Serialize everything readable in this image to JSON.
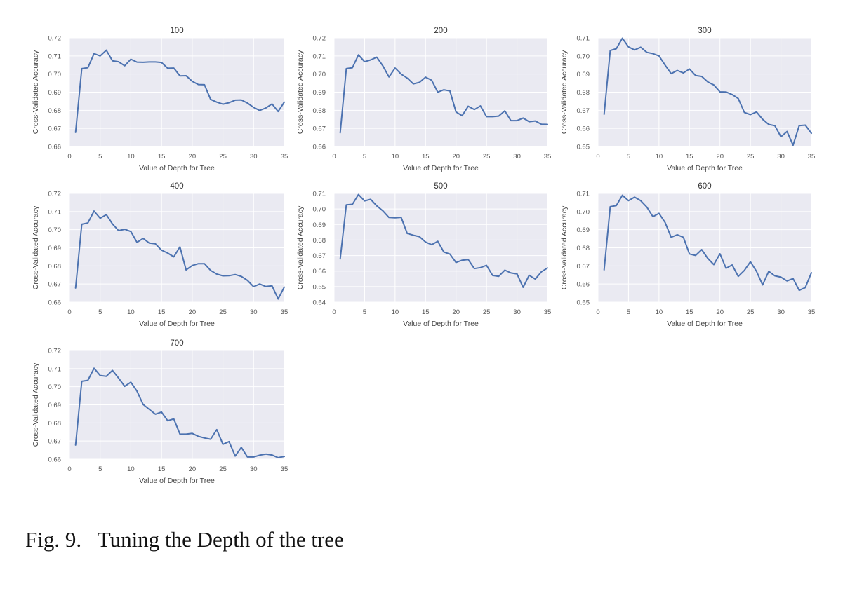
{
  "caption": "Fig. 9.   Tuning the Depth of the tree",
  "style": {
    "plot_bg": "#eaeaf2",
    "grid": "#ffffff",
    "line": "#4c72b0"
  },
  "chart_data": [
    {
      "type": "line",
      "title": "100",
      "xlabel": "Value of Depth for Tree",
      "ylabel": "Cross-Validated Accuracy",
      "xlim": [
        0,
        35
      ],
      "ylim": [
        0.66,
        0.72
      ],
      "xticks": [
        "0",
        "5",
        "10",
        "15",
        "20",
        "25",
        "30",
        "35"
      ],
      "yticks": [
        "0.66",
        "0.67",
        "0.68",
        "0.69",
        "0.70",
        "0.71",
        "0.72"
      ],
      "grid": true,
      "x": [
        1,
        2,
        3,
        4,
        5,
        6,
        7,
        8,
        9,
        10,
        11,
        12,
        13,
        14,
        15,
        16,
        17,
        18,
        19,
        20,
        21,
        22,
        23,
        24,
        25,
        26,
        27,
        28,
        29,
        30,
        31,
        32,
        33,
        34,
        35
      ],
      "y": [
        0.6678,
        0.703,
        0.7035,
        0.7113,
        0.71,
        0.7132,
        0.7073,
        0.7068,
        0.7046,
        0.7082,
        0.7066,
        0.7065,
        0.7067,
        0.7067,
        0.7064,
        0.7032,
        0.7033,
        0.699,
        0.6991,
        0.696,
        0.6942,
        0.6941,
        0.686,
        0.6845,
        0.6834,
        0.6842,
        0.6856,
        0.6857,
        0.684,
        0.6816,
        0.6799,
        0.6813,
        0.6835,
        0.6793,
        0.6845
      ]
    },
    {
      "type": "line",
      "title": "200",
      "xlabel": "Value of Depth for Tree",
      "ylabel": "Cross-Validated Accuracy",
      "xlim": [
        0,
        35
      ],
      "ylim": [
        0.66,
        0.72
      ],
      "xticks": [
        "0",
        "5",
        "10",
        "15",
        "20",
        "25",
        "30",
        "35"
      ],
      "yticks": [
        "0.66",
        "0.67",
        "0.68",
        "0.69",
        "0.70",
        "0.71",
        "0.72"
      ],
      "grid": true,
      "x": [
        1,
        2,
        3,
        4,
        5,
        6,
        7,
        8,
        9,
        10,
        11,
        12,
        13,
        14,
        15,
        16,
        17,
        18,
        19,
        20,
        21,
        22,
        23,
        24,
        25,
        26,
        27,
        28,
        29,
        30,
        31,
        32,
        33,
        34,
        35
      ],
      "y": [
        0.6676,
        0.703,
        0.7035,
        0.7106,
        0.7068,
        0.7078,
        0.7093,
        0.7045,
        0.6984,
        0.7033,
        0.7,
        0.6978,
        0.6946,
        0.6954,
        0.6983,
        0.6966,
        0.69,
        0.6913,
        0.6907,
        0.6791,
        0.677,
        0.6822,
        0.6804,
        0.6824,
        0.6765,
        0.6765,
        0.6768,
        0.6797,
        0.6743,
        0.6743,
        0.6757,
        0.6737,
        0.6741,
        0.6723,
        0.6722
      ]
    },
    {
      "type": "line",
      "title": "300",
      "xlabel": "Value of Depth for Tree",
      "ylabel": "Cross-Validated Accuracy",
      "xlim": [
        0,
        35
      ],
      "ylim": [
        0.65,
        0.71
      ],
      "xticks": [
        "0",
        "5",
        "10",
        "15",
        "20",
        "25",
        "30",
        "35"
      ],
      "yticks": [
        "0.65",
        "0.66",
        "0.67",
        "0.68",
        "0.69",
        "0.70",
        "0.71"
      ],
      "grid": true,
      "x": [
        1,
        2,
        3,
        4,
        5,
        6,
        7,
        8,
        9,
        10,
        11,
        12,
        13,
        14,
        15,
        16,
        17,
        18,
        19,
        20,
        21,
        22,
        23,
        24,
        25,
        26,
        27,
        28,
        29,
        30,
        31,
        32,
        33,
        34,
        35
      ],
      "y": [
        0.6678,
        0.703,
        0.704,
        0.7098,
        0.705,
        0.7033,
        0.7048,
        0.702,
        0.7013,
        0.7,
        0.695,
        0.6902,
        0.692,
        0.6906,
        0.6928,
        0.6892,
        0.6887,
        0.6857,
        0.684,
        0.6802,
        0.6801,
        0.6787,
        0.6765,
        0.6688,
        0.6676,
        0.6691,
        0.665,
        0.6622,
        0.6615,
        0.6554,
        0.6583,
        0.6507,
        0.6615,
        0.6618,
        0.6573
      ]
    },
    {
      "type": "line",
      "title": "400",
      "xlabel": "Value of Depth for Tree",
      "ylabel": "Cross-Validated Accuracy",
      "xlim": [
        0,
        35
      ],
      "ylim": [
        0.66,
        0.72
      ],
      "xticks": [
        "0",
        "5",
        "10",
        "15",
        "20",
        "25",
        "30",
        "35"
      ],
      "yticks": [
        "0.66",
        "0.67",
        "0.68",
        "0.69",
        "0.70",
        "0.71",
        "0.72"
      ],
      "grid": true,
      "x": [
        1,
        2,
        3,
        4,
        5,
        6,
        7,
        8,
        9,
        10,
        11,
        12,
        13,
        14,
        15,
        16,
        17,
        18,
        19,
        20,
        21,
        22,
        23,
        24,
        25,
        26,
        27,
        28,
        29,
        30,
        31,
        32,
        33,
        34,
        35
      ],
      "y": [
        0.6678,
        0.703,
        0.7037,
        0.7103,
        0.7063,
        0.7083,
        0.7032,
        0.6995,
        0.7002,
        0.699,
        0.693,
        0.6952,
        0.6926,
        0.6922,
        0.6887,
        0.6871,
        0.685,
        0.6905,
        0.6778,
        0.6802,
        0.6812,
        0.6812,
        0.6775,
        0.6755,
        0.6745,
        0.6746,
        0.6752,
        0.6742,
        0.672,
        0.6685,
        0.67,
        0.6686,
        0.669,
        0.6617,
        0.6683
      ]
    },
    {
      "type": "line",
      "title": "500",
      "xlabel": "Value of Depth for Tree",
      "ylabel": "Cross-Validated Accuracy",
      "xlim": [
        0,
        35
      ],
      "ylim": [
        0.64,
        0.71
      ],
      "xticks": [
        "0",
        "5",
        "10",
        "15",
        "20",
        "25",
        "30",
        "35"
      ],
      "yticks": [
        "0.64",
        "0.65",
        "0.66",
        "0.67",
        "0.68",
        "0.69",
        "0.70",
        "0.71"
      ],
      "grid": true,
      "x": [
        1,
        2,
        3,
        4,
        5,
        6,
        7,
        8,
        9,
        10,
        11,
        12,
        13,
        14,
        15,
        16,
        17,
        18,
        19,
        20,
        21,
        22,
        23,
        24,
        25,
        26,
        27,
        28,
        29,
        30,
        31,
        32,
        33,
        34,
        35
      ],
      "y": [
        0.6678,
        0.7027,
        0.703,
        0.7093,
        0.7052,
        0.7062,
        0.702,
        0.6988,
        0.6945,
        0.6943,
        0.6946,
        0.6842,
        0.6831,
        0.6822,
        0.6787,
        0.677,
        0.6792,
        0.6723,
        0.671,
        0.6655,
        0.667,
        0.6674,
        0.6616,
        0.6622,
        0.6637,
        0.6572,
        0.6566,
        0.6606,
        0.6588,
        0.6582,
        0.6495,
        0.6573,
        0.6548,
        0.6595,
        0.662
      ]
    },
    {
      "type": "line",
      "title": "600",
      "xlabel": "Value of Depth for Tree",
      "ylabel": "Cross-Validated Accuracy",
      "xlim": [
        0,
        35
      ],
      "ylim": [
        0.65,
        0.71
      ],
      "xticks": [
        "0",
        "5",
        "10",
        "15",
        "20",
        "25",
        "30",
        "35"
      ],
      "yticks": [
        "0.65",
        "0.66",
        "0.67",
        "0.68",
        "0.69",
        "0.70",
        "0.71"
      ],
      "grid": true,
      "x": [
        1,
        2,
        3,
        4,
        5,
        6,
        7,
        8,
        9,
        10,
        11,
        12,
        13,
        14,
        15,
        16,
        17,
        18,
        19,
        20,
        21,
        22,
        23,
        24,
        25,
        26,
        27,
        28,
        29,
        30,
        31,
        32,
        33,
        34,
        35
      ],
      "y": [
        0.6678,
        0.7027,
        0.7033,
        0.709,
        0.706,
        0.708,
        0.706,
        0.7025,
        0.6972,
        0.699,
        0.694,
        0.6858,
        0.6872,
        0.6858,
        0.6766,
        0.6758,
        0.679,
        0.6742,
        0.6707,
        0.6767,
        0.6687,
        0.6705,
        0.6642,
        0.6675,
        0.6723,
        0.667,
        0.6595,
        0.667,
        0.6645,
        0.6638,
        0.6617,
        0.663,
        0.6565,
        0.658,
        0.6662
      ]
    },
    {
      "type": "line",
      "title": "700",
      "xlabel": "Value of Depth for Tree",
      "ylabel": "Cross-Validated Accuracy",
      "xlim": [
        0,
        35
      ],
      "ylim": [
        0.66,
        0.72
      ],
      "xticks": [
        "0",
        "5",
        "10",
        "15",
        "20",
        "25",
        "30",
        "35"
      ],
      "yticks": [
        "0.66",
        "0.67",
        "0.68",
        "0.69",
        "0.70",
        "0.71",
        "0.72"
      ],
      "grid": true,
      "x": [
        1,
        2,
        3,
        4,
        5,
        6,
        7,
        8,
        9,
        10,
        11,
        12,
        13,
        14,
        15,
        16,
        17,
        18,
        19,
        20,
        21,
        22,
        23,
        24,
        25,
        26,
        27,
        28,
        29,
        30,
        31,
        32,
        33,
        34,
        35
      ],
      "y": [
        0.6678,
        0.703,
        0.7035,
        0.7102,
        0.7062,
        0.7058,
        0.709,
        0.7048,
        0.7002,
        0.7025,
        0.6975,
        0.6902,
        0.6875,
        0.6848,
        0.686,
        0.6812,
        0.6822,
        0.6738,
        0.6738,
        0.6742,
        0.6726,
        0.6717,
        0.671,
        0.6763,
        0.6682,
        0.6697,
        0.6617,
        0.6665,
        0.6612,
        0.6612,
        0.6622,
        0.6628,
        0.6623,
        0.6608,
        0.6615
      ]
    }
  ]
}
